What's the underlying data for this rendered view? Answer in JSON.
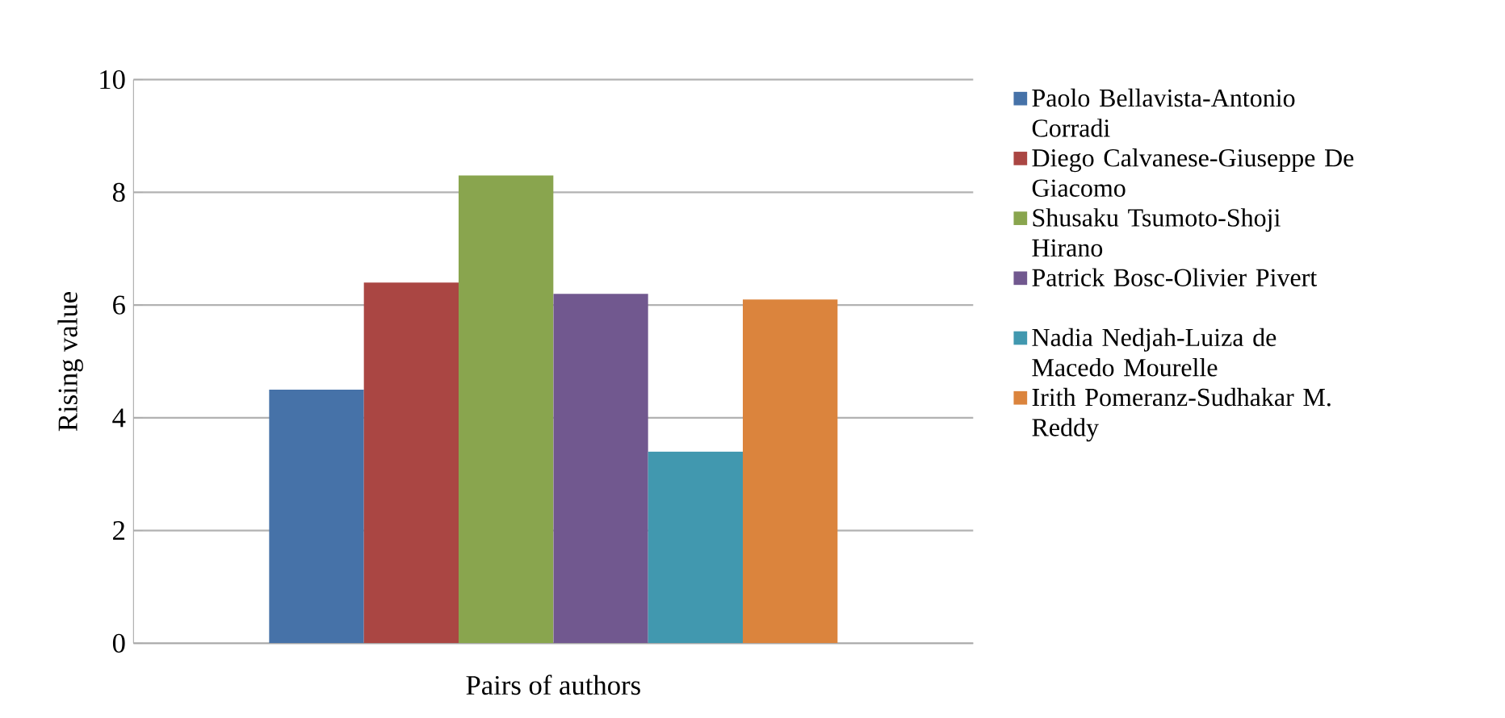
{
  "chart_data": {
    "type": "bar",
    "xlabel": "Pairs of authors",
    "ylabel": "Rising value",
    "categories": [
      null
    ],
    "series": [
      {
        "name": "Paolo Bellavista-Antonio Corradi",
        "color": "#4672a8",
        "values": [
          4.5
        ]
      },
      {
        "name": "Diego Calvanese-Giuseppe De Giacomo",
        "color": "#aa4643",
        "values": [
          6.4
        ]
      },
      {
        "name": "Shusaku Tsumoto-Shoji Hirano",
        "color": "#89a54e",
        "values": [
          8.3
        ]
      },
      {
        "name": "Patrick Bosc-Olivier Pivert",
        "color": "#71588f",
        "values": [
          6.2
        ]
      },
      {
        "name": "Nadia Nedjah-Luiza de Macedo Mourelle",
        "color": "#4198af",
        "values": [
          3.4
        ]
      },
      {
        "name": "Irith Pomeranz-Sudhakar M. Reddy",
        "color": "#db843d",
        "values": [
          6.1
        ]
      }
    ],
    "ylim": [
      0,
      10
    ],
    "yticks": [
      0,
      2,
      4,
      6,
      8,
      10
    ],
    "grid": "y",
    "legend": "right"
  }
}
